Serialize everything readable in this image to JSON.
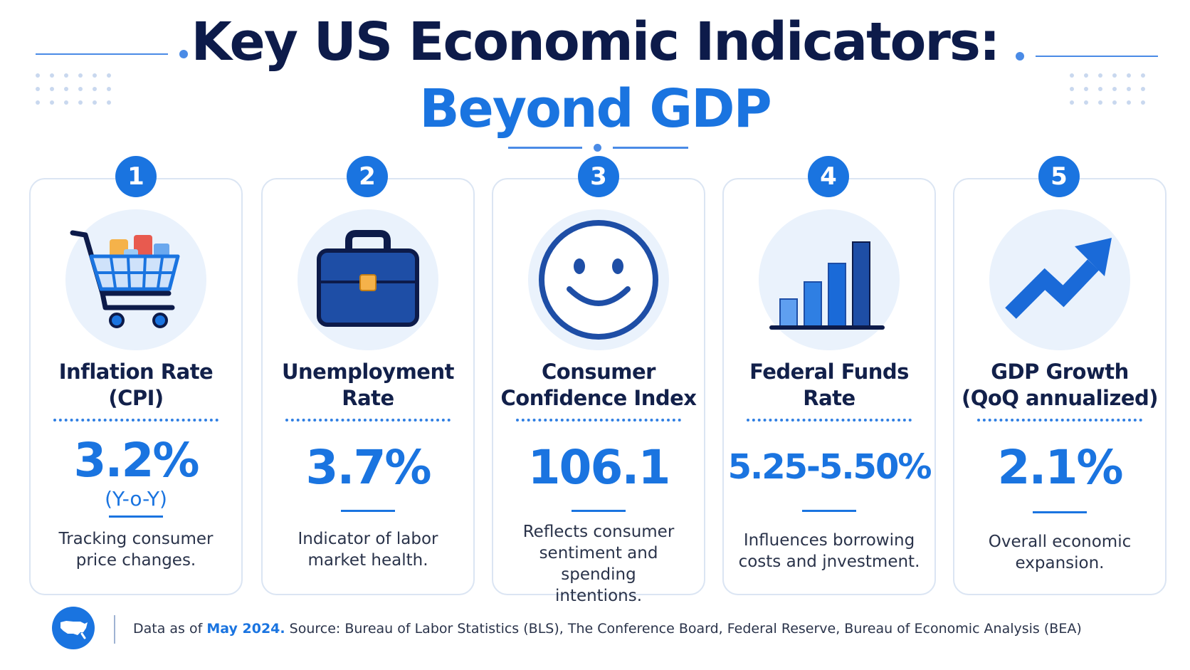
{
  "header": {
    "title_line1": "Key US Economic Indicators:",
    "title_line2": "Beyond GDP"
  },
  "colors": {
    "primary_blue": "#1a74e0",
    "navy": "#0d1b4a",
    "icon_bg": "#eaf2fc",
    "card_border": "#dbe5f3"
  },
  "cards": [
    {
      "number": "1",
      "icon": "shopping-cart-icon",
      "name_line1": "Inflation Rate",
      "name_line2": "(CPI)",
      "value": "3.2%",
      "value_sub": "(Y-o-Y)",
      "desc_line1": "Tracking consumer",
      "desc_line2": "price changes.",
      "desc_line3": ""
    },
    {
      "number": "2",
      "icon": "briefcase-icon",
      "name_line1": "Unemployment",
      "name_line2": "Rate",
      "value": "3.7%",
      "value_sub": "",
      "desc_line1": "Indicator of labor",
      "desc_line2": "market health.",
      "desc_line3": ""
    },
    {
      "number": "3",
      "icon": "smiley-face-icon",
      "name_line1": "Consumer",
      "name_line2": "Confidence Index",
      "value": "106.1",
      "value_sub": "",
      "desc_line1": "Reflects consumer",
      "desc_line2": "sentiment and spending",
      "desc_line3": "intentions."
    },
    {
      "number": "4",
      "icon": "bar-chart-icon",
      "name_line1": "Federal Funds",
      "name_line2": "Rate",
      "value": "5.25-5.50%",
      "value_sub": "",
      "desc_line1": "Influences borrowing",
      "desc_line2": "costs and jnvestment.",
      "desc_line3": ""
    },
    {
      "number": "5",
      "icon": "trend-arrow-icon",
      "name_line1": "GDP Growth",
      "name_line2": "(QoQ annualized)",
      "value": "2.1%",
      "value_sub": "",
      "desc_line1": "Overall economic",
      "desc_line2": "expansion.",
      "desc_line3": ""
    }
  ],
  "footer": {
    "icon": "us-map-icon",
    "date_prefix": "Data as of",
    "date": "May 2024.",
    "source": "Source: Bureau of Labor Statistics (BLS), The Conference Board, Federal Reserve, Bureau of Economic Analysis (BEA)"
  }
}
